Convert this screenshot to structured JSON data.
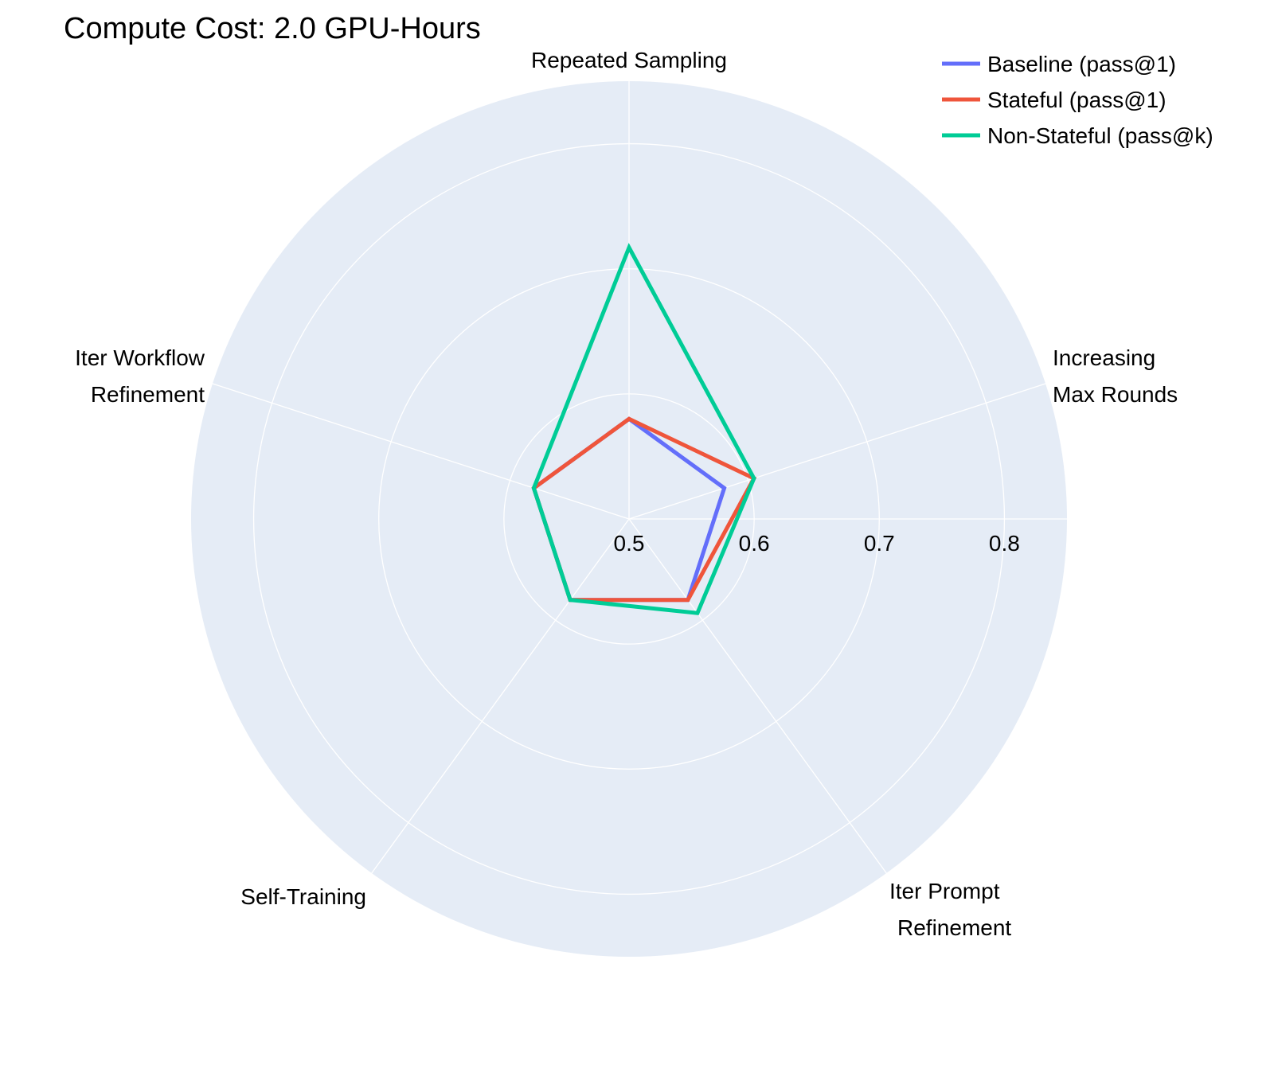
{
  "chart_data": {
    "type": "radar",
    "title": "Compute Cost: 2.0 GPU-Hours",
    "categories": [
      [
        "Repeated Sampling"
      ],
      [
        "Increasing",
        "Max Rounds"
      ],
      [
        "Iter Prompt",
        "Refinement"
      ],
      [
        "Self-Training"
      ],
      [
        "Iter Workflow",
        "Refinement"
      ]
    ],
    "radial_range": [
      0.5,
      0.85
    ],
    "radial_ticks": [
      0.5,
      0.6,
      0.7,
      0.8
    ],
    "radial_tick_labels": [
      "0.5",
      "0.6",
      "0.7",
      "0.8"
    ],
    "grid": true,
    "legend_position": "top-right",
    "series": [
      {
        "name": "Baseline (pass@1)",
        "color": "#636efa",
        "values": [
          0.58,
          0.58,
          0.58,
          0.58,
          0.58
        ]
      },
      {
        "name": "Stateful (pass@1)",
        "color": "#ef553b",
        "values": [
          0.58,
          0.605,
          0.58,
          0.58,
          0.58
        ]
      },
      {
        "name": "Non-Stateful (pass@k)",
        "color": "#00cc96",
        "values": [
          0.717,
          0.605,
          0.593,
          0.58,
          0.58
        ]
      }
    ]
  },
  "colors": {
    "background": "#ffffff",
    "polar_background": "#e5ecf6",
    "grid": "#ffffff"
  }
}
